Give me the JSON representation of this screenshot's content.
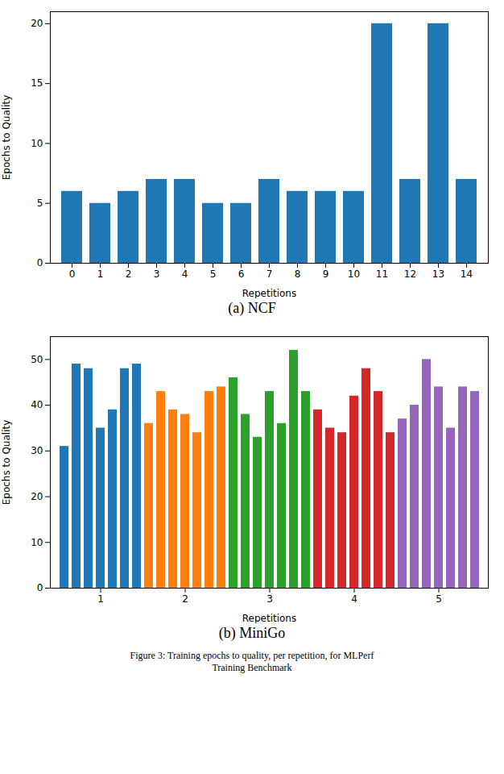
{
  "title": "Figure 3: Training epochs to quality, per repetition, for MLPerf\nTraining Benchmark",
  "chart_data": [
    {
      "type": "bar",
      "title": "(a) NCF",
      "xlabel": "Repetitions",
      "ylabel": "Epochs to Quality",
      "categories": [
        "0",
        "1",
        "2",
        "3",
        "4",
        "5",
        "6",
        "7",
        "8",
        "9",
        "10",
        "11",
        "12",
        "13",
        "14"
      ],
      "values": [
        6,
        5,
        6,
        7,
        7,
        5,
        5,
        7,
        6,
        6,
        6,
        20,
        7,
        20,
        7
      ],
      "color": "#1f77b4",
      "ylim": [
        0,
        21
      ],
      "yticks": [
        0,
        5,
        10,
        15,
        20
      ],
      "grid": false
    },
    {
      "type": "bar",
      "title": "(b) MiniGo",
      "xlabel": "Repetitions",
      "ylabel": "Epochs to Quality",
      "categories": [
        null,
        null,
        null,
        "1",
        null,
        null,
        null,
        null,
        null,
        null,
        "2",
        null,
        null,
        null,
        null,
        null,
        null,
        "3",
        null,
        null,
        null,
        null,
        null,
        null,
        "4",
        null,
        null,
        null,
        null,
        null,
        null,
        "5",
        null,
        null,
        null
      ],
      "values": [
        31,
        49,
        48,
        35,
        39,
        48,
        49,
        36,
        43,
        39,
        38,
        34,
        43,
        44,
        46,
        38,
        33,
        43,
        36,
        52,
        43,
        39,
        35,
        34,
        42,
        48,
        43,
        34,
        37,
        40,
        50,
        44,
        35,
        44,
        43
      ],
      "colors": [
        "#1f77b4",
        "#1f77b4",
        "#1f77b4",
        "#1f77b4",
        "#1f77b4",
        "#1f77b4",
        "#1f77b4",
        "#ff7f0e",
        "#ff7f0e",
        "#ff7f0e",
        "#ff7f0e",
        "#ff7f0e",
        "#ff7f0e",
        "#ff7f0e",
        "#2ca02c",
        "#2ca02c",
        "#2ca02c",
        "#2ca02c",
        "#2ca02c",
        "#2ca02c",
        "#2ca02c",
        "#d62728",
        "#d62728",
        "#d62728",
        "#d62728",
        "#d62728",
        "#d62728",
        "#d62728",
        "#9467bd",
        "#9467bd",
        "#9467bd",
        "#9467bd",
        "#9467bd",
        "#9467bd",
        "#9467bd"
      ],
      "ylim": [
        0,
        55
      ],
      "yticks": [
        0,
        10,
        20,
        30,
        40,
        50
      ],
      "grid": false
    }
  ]
}
